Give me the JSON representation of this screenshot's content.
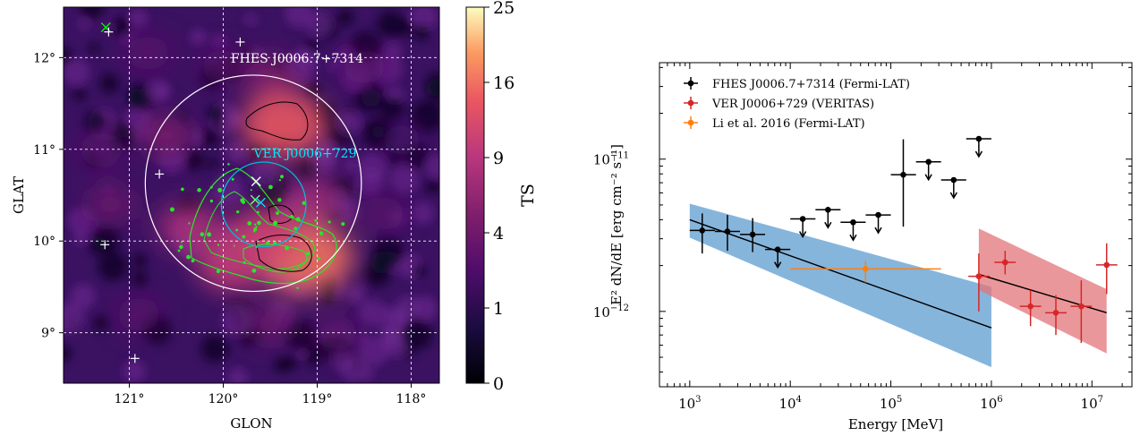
{
  "chart_data": [
    {
      "type": "heatmap",
      "xlabel": "GLON",
      "ylabel": "GLAT",
      "x_ticks": [
        "121°",
        "120°",
        "119°",
        "118°"
      ],
      "x_tick_values": [
        121,
        120,
        119,
        118
      ],
      "y_ticks": [
        "12°",
        "11°",
        "10°",
        "9°"
      ],
      "y_tick_values": [
        12,
        11,
        10,
        9
      ],
      "xlim": [
        121.7,
        117.7
      ],
      "ylim": [
        8.45,
        12.55
      ],
      "grid": true,
      "colorbar": {
        "label": "TS",
        "ticks": [
          "0",
          "1",
          "4",
          "9",
          "16",
          "25"
        ],
        "tick_values": [
          0,
          1,
          4,
          9,
          16,
          25
        ],
        "colormap": "magma"
      },
      "annotations": [
        {
          "text": "FHES J0006.7+7314",
          "color": "#ffffff"
        },
        {
          "text": "VER J0006+729",
          "color": "#00e5ff"
        }
      ],
      "circles": [
        {
          "glon": 119.68,
          "glat": 10.63,
          "radius_deg": 1.15,
          "color": "#ffffff"
        },
        {
          "glon": 119.57,
          "glat": 10.4,
          "radius_deg": 0.45,
          "color": "#00bcd4"
        }
      ],
      "markers": [
        {
          "glon": 121.25,
          "glat": 12.33,
          "symbol": "x",
          "color": "#00ff00"
        },
        {
          "glon": 121.22,
          "glat": 12.28,
          "symbol": "+",
          "color": "#ffffff"
        },
        {
          "glon": 119.82,
          "glat": 12.17,
          "symbol": "+",
          "color": "#ffffff"
        },
        {
          "glon": 120.68,
          "glat": 10.73,
          "symbol": "+",
          "color": "#ffffff"
        },
        {
          "glon": 121.26,
          "glat": 9.96,
          "symbol": "+",
          "color": "#ffffff"
        },
        {
          "glon": 120.94,
          "glat": 8.72,
          "symbol": "+",
          "color": "#ffffff"
        },
        {
          "glon": 119.65,
          "glat": 10.65,
          "symbol": "x",
          "color": "#ffffff"
        },
        {
          "glon": 119.66,
          "glat": 10.45,
          "symbol": "x",
          "color": "#7cff7c"
        },
        {
          "glon": 119.6,
          "glat": 10.42,
          "symbol": "x",
          "color": "#00e5ff"
        }
      ],
      "hotspots": [
        {
          "glon": 119.35,
          "glat": 11.27,
          "ts": 14
        },
        {
          "glon": 119.12,
          "glat": 9.82,
          "ts": 16
        },
        {
          "glon": 119.55,
          "glat": 10.05,
          "ts": 11
        },
        {
          "glon": 119.9,
          "glat": 9.75,
          "ts": 10
        },
        {
          "glon": 120.35,
          "glat": 10.15,
          "ts": 8
        },
        {
          "glon": 119.05,
          "glat": 10.45,
          "ts": 7
        },
        {
          "glon": 120.6,
          "glat": 11.15,
          "ts": 5
        },
        {
          "glon": 119.5,
          "glat": 11.8,
          "ts": 5
        },
        {
          "glon": 118.5,
          "glat": 11.9,
          "ts": 3
        },
        {
          "glon": 121.3,
          "glat": 11.0,
          "ts": 3
        },
        {
          "glon": 118.3,
          "glat": 10.3,
          "ts": 3
        },
        {
          "glon": 120.9,
          "glat": 9.2,
          "ts": 3
        },
        {
          "glon": 119.5,
          "glat": 9.1,
          "ts": 4
        },
        {
          "glon": 118.8,
          "glat": 9.0,
          "ts": 3
        },
        {
          "glon": 121.2,
          "glat": 10.4,
          "ts": 4
        },
        {
          "glon": 120.8,
          "glat": 12.05,
          "ts": 3
        },
        {
          "glon": 118.1,
          "glat": 11.1,
          "ts": 2
        },
        {
          "glon": 120.0,
          "glat": 11.9,
          "ts": 3
        }
      ]
    },
    {
      "type": "scatter",
      "xlabel": "Energy [MeV]",
      "ylabel": "E² dN/dE [erg cm⁻² s⁻¹]",
      "x_scale": "log",
      "y_scale": "log",
      "xlim": [
        500,
        25000000
      ],
      "ylim": [
        3.2e-13,
        4.3e-11
      ],
      "x_ticks": [
        1000,
        10000,
        100000,
        1000000,
        10000000
      ],
      "x_tick_labels": [
        {
          "base": "10",
          "exp": "3"
        },
        {
          "base": "10",
          "exp": "4"
        },
        {
          "base": "10",
          "exp": "5"
        },
        {
          "base": "10",
          "exp": "6"
        },
        {
          "base": "10",
          "exp": "7"
        }
      ],
      "y_ticks": [
        1e-12,
        1e-11
      ],
      "y_tick_labels": [
        {
          "base": "10",
          "exp": "−12"
        },
        {
          "base": "10",
          "exp": "−11"
        }
      ],
      "legend_position": "top-left",
      "series": [
        {
          "name": "FHES J0006.7+7314 (Fermi-LAT)",
          "color": "#000000",
          "points": [
            {
              "x": 1330,
              "y": 3.4e-12,
              "xlo": 1000,
              "xhi": 1780,
              "ylo": 2.4e-12,
              "yhi": 4.4e-12
            },
            {
              "x": 2370,
              "y": 3.35e-12,
              "xlo": 1780,
              "xhi": 3160,
              "ylo": 2.5e-12,
              "yhi": 4.3e-12
            },
            {
              "x": 4220,
              "y": 3.2e-12,
              "xlo": 3160,
              "xhi": 5620,
              "ylo": 2.45e-12,
              "yhi": 4.1e-12
            },
            {
              "x": 7500,
              "y": 2.55e-12,
              "xlo": 5620,
              "xhi": 10000,
              "ul": true
            },
            {
              "x": 13300,
              "y": 4.05e-12,
              "xlo": 10000,
              "xhi": 17800,
              "ul": true
            },
            {
              "x": 23700,
              "y": 4.65e-12,
              "xlo": 17800,
              "xhi": 31600,
              "ul": true
            },
            {
              "x": 42200,
              "y": 3.85e-12,
              "xlo": 31600,
              "xhi": 56200,
              "ul": true
            },
            {
              "x": 75000,
              "y": 4.3e-12,
              "xlo": 56200,
              "xhi": 100000,
              "ul": true
            },
            {
              "x": 133000,
              "y": 7.9e-12,
              "xlo": 100000,
              "xhi": 178000,
              "ylo": 3.6e-12,
              "yhi": 1.35e-11
            },
            {
              "x": 237000,
              "y": 9.6e-12,
              "xlo": 178000,
              "xhi": 316000,
              "ul": true
            },
            {
              "x": 422000,
              "y": 7.3e-12,
              "xlo": 316000,
              "xhi": 562000,
              "ul": true
            },
            {
              "x": 750000,
              "y": 1.36e-11,
              "xlo": 562000,
              "xhi": 1000000,
              "ul": true
            }
          ],
          "model": {
            "x": [
              1000,
              1000000
            ],
            "y": [
              4e-12,
              7.8e-13
            ]
          },
          "band": {
            "color": "#5d9cd0",
            "x": [
              1000,
              1000000
            ],
            "upper": [
              5.1e-12,
              1.45e-12
            ],
            "lower": [
              3.05e-12,
              4.3e-13
            ]
          }
        },
        {
          "name": "VER J0006+729 (VERITAS)",
          "color": "#d62728",
          "points": [
            {
              "x": 750000,
              "y": 1.7e-12,
              "xlo": 590000,
              "xhi": 960000,
              "ylo": 1e-12,
              "yhi": 2.4e-12
            },
            {
              "x": 1370000,
              "y": 2.1e-12,
              "xlo": 1070000,
              "xhi": 1750000,
              "ylo": 1.75e-12,
              "yhi": 2.5e-12
            },
            {
              "x": 2450000,
              "y": 1.08e-12,
              "xlo": 1920000,
              "xhi": 3130000,
              "ylo": 8e-13,
              "yhi": 1.38e-12
            },
            {
              "x": 4380000,
              "y": 9.8e-13,
              "xlo": 3430000,
              "xhi": 5600000,
              "ylo": 7e-13,
              "yhi": 1.28e-12
            },
            {
              "x": 7830000,
              "y": 1.08e-12,
              "xlo": 6130000,
              "xhi": 10000000,
              "ylo": 6.2e-13,
              "yhi": 1.6e-12
            },
            {
              "x": 14000000,
              "y": 2.02e-12,
              "xlo": 11000000,
              "xhi": 17900000,
              "ylo": 1.3e-12,
              "yhi": 2.8e-12
            }
          ],
          "model": {
            "x": [
              750000,
              14000000
            ],
            "y": [
              1.75e-12,
              9.8e-13
            ]
          },
          "band": {
            "color": "#e37479",
            "x": [
              750000,
              14000000
            ],
            "upper": [
              3.5e-12,
              1.4e-12
            ],
            "lower": [
              1.38e-12,
              5.3e-13
            ]
          }
        },
        {
          "name": "Li et al. 2016 (Fermi-LAT)",
          "color": "#ff7f0e",
          "points": [
            {
              "x": 56000,
              "y": 1.9e-12,
              "xlo": 10000,
              "xhi": 316000,
              "ylo": 1.55e-12,
              "yhi": 2.15e-12
            }
          ]
        }
      ]
    }
  ]
}
